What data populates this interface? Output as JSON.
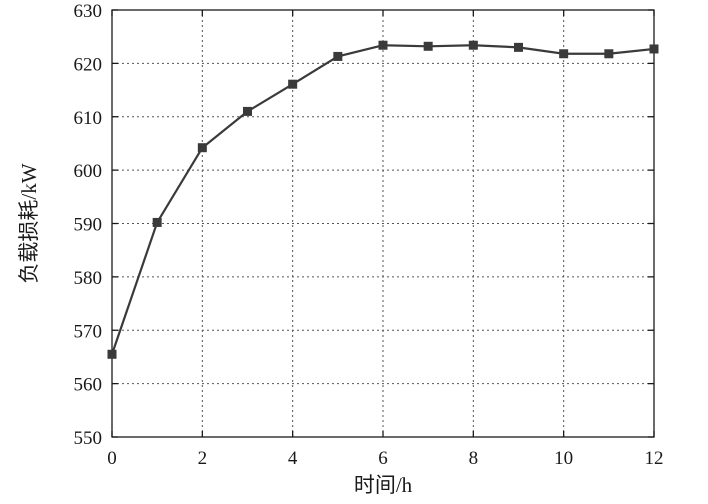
{
  "chart_data": {
    "type": "line",
    "title": "",
    "xlabel": "时间/h",
    "ylabel": "负载损耗/kW",
    "x": [
      0,
      1,
      2,
      3,
      4,
      5,
      6,
      7,
      8,
      9,
      10,
      11,
      12
    ],
    "series": [
      {
        "values": [
          565.5,
          590.2,
          604.2,
          611.0,
          616.1,
          621.3,
          623.4,
          623.2,
          623.4,
          623.0,
          621.8,
          621.8,
          622.7
        ],
        "color": "#3a3a3a",
        "marker": "square"
      }
    ],
    "xlim": [
      0,
      12
    ],
    "ylim": [
      550,
      630
    ],
    "xticks": [
      0,
      2,
      4,
      6,
      8,
      10,
      12
    ],
    "yticks": [
      550,
      560,
      570,
      580,
      590,
      600,
      610,
      620,
      630
    ],
    "grid": true,
    "legend": "none"
  }
}
